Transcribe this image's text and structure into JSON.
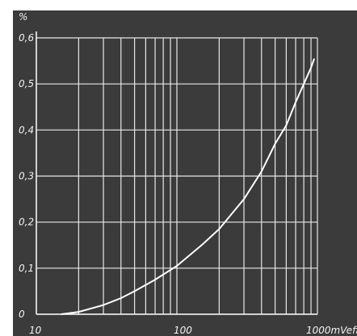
{
  "chart_data": {
    "type": "line",
    "title": "",
    "xlabel": "",
    "ylabel": "",
    "x_scale": "log",
    "xlim": [
      10,
      1000
    ],
    "ylim": [
      0,
      0.6
    ],
    "grid": true,
    "x_tick_labels": [
      "10",
      "100",
      "1000mVeff"
    ],
    "y_tick_labels": [
      "0",
      "0,1",
      "0,2",
      "0,3",
      "0,4",
      "0,5",
      "0,6"
    ],
    "y_unit_label": "%",
    "series": [
      {
        "x": [
          15,
          20,
          30,
          40,
          50,
          70,
          100,
          150,
          200,
          300,
          400,
          500,
          600,
          700,
          800,
          900,
          950
        ],
        "values": [
          0,
          0.005,
          0.02,
          0.035,
          0.05,
          0.075,
          0.105,
          0.15,
          0.185,
          0.25,
          0.31,
          0.37,
          0.41,
          0.46,
          0.5,
          0.535,
          0.555
        ]
      }
    ]
  }
}
